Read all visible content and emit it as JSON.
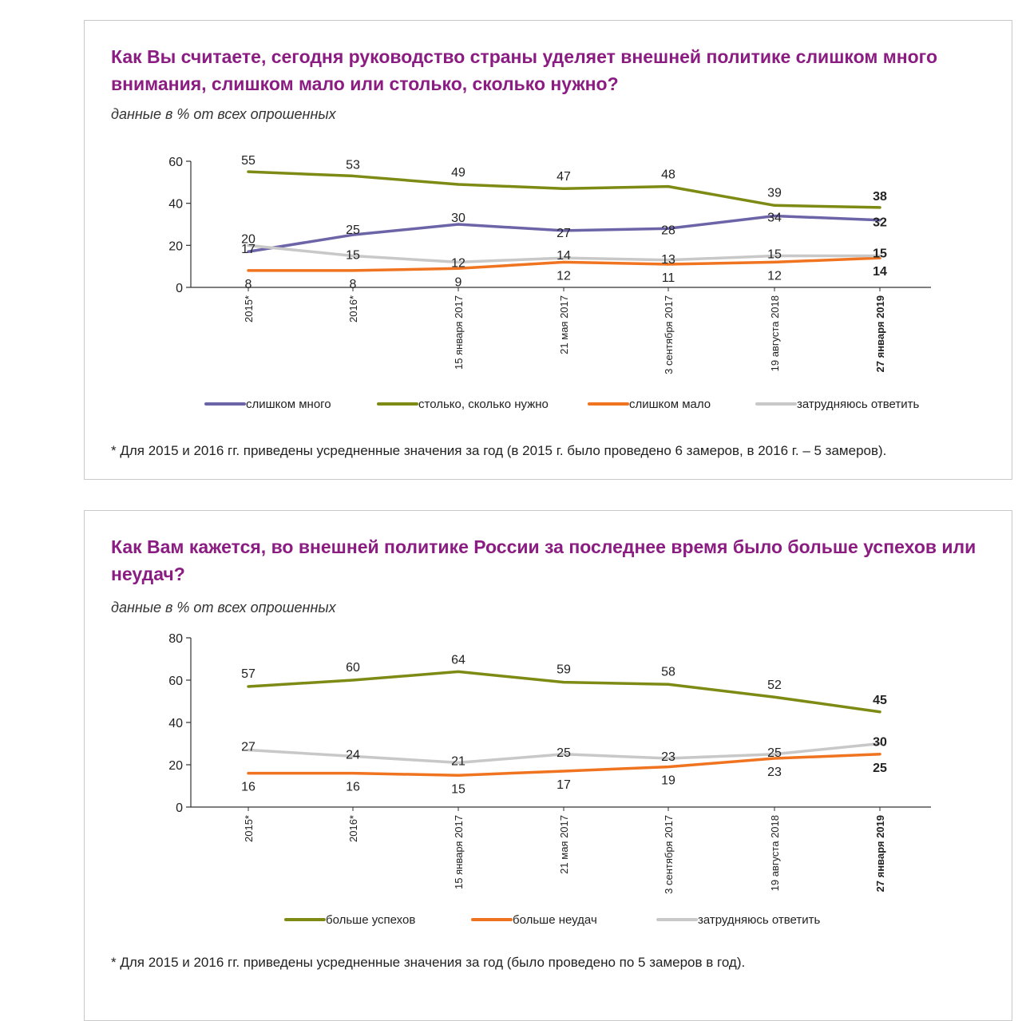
{
  "chart_data": [
    {
      "type": "line",
      "title": "Как Вы считаете, сегодня руководство страны уделяет внешней политике слишком много внимания, слишком мало или столько, сколько нужно?",
      "subtitle": "данные в % от всех опрошенных",
      "footnote": "*  Для 2015 и 2016 гг. приведены усредненные значения за год (в 2015 г. было проведено 6 замеров, в 2016 г. – 5 замеров).",
      "categories": [
        "2015*",
        "2016*",
        "15 января 2017",
        "21 мая 2017",
        "3 сентября 2017",
        "19 августа 2018",
        "27 января 2019"
      ],
      "ylim": [
        0,
        60
      ],
      "yticks": [
        "0",
        "20",
        "40",
        "60"
      ],
      "xlabel": "",
      "ylabel": "",
      "series": [
        {
          "name": "слишком много",
          "color": "#6b65a8",
          "values": [
            17,
            25,
            30,
            27,
            28,
            34,
            32
          ],
          "labels": [
            "17",
            "25",
            "30",
            "27",
            "28",
            "34",
            "32"
          ]
        },
        {
          "name": "столько, сколько нужно",
          "color": "#7d8a14",
          "values": [
            55,
            53,
            49,
            47,
            48,
            39,
            38
          ],
          "labels": [
            "55",
            "53",
            "49",
            "47",
            "48",
            "39",
            "38"
          ]
        },
        {
          "name": "слишком мало",
          "color": "#f07320",
          "values": [
            8,
            8,
            9,
            12,
            11,
            12,
            14
          ],
          "labels": [
            "8",
            "8",
            "9",
            "12",
            "11",
            "12",
            "14"
          ]
        },
        {
          "name": "затрудняюсь ответить",
          "color": "#c8c8c8",
          "values": [
            20,
            15,
            12,
            14,
            13,
            15,
            15
          ],
          "labels": [
            "20",
            "15",
            "12",
            "14",
            "13",
            "15",
            "15"
          ]
        }
      ]
    },
    {
      "type": "line",
      "title": "Как Вам кажется, во внешней политике России за последнее время было больше успехов или неудач?",
      "subtitle": "данные в % от всех опрошенных",
      "footnote": "*  Для 2015 и 2016 гг. приведены усредненные значения за год (было проведено по 5 замеров в год).",
      "categories": [
        "2015*",
        "2016*",
        "15 января 2017",
        "21 мая 2017",
        "3 сентября 2017",
        "19 августа 2018",
        "27 января 2019"
      ],
      "ylim": [
        0,
        80
      ],
      "yticks": [
        "0",
        "20",
        "40",
        "60",
        "80"
      ],
      "xlabel": "",
      "ylabel": "",
      "series": [
        {
          "name": "больше успехов",
          "color": "#7d8a14",
          "values": [
            57,
            60,
            64,
            59,
            58,
            52,
            45
          ],
          "labels": [
            "57",
            "60",
            "64",
            "59",
            "58",
            "52",
            "45"
          ]
        },
        {
          "name": "больше неудач",
          "color": "#f07320",
          "values": [
            16,
            16,
            15,
            17,
            19,
            23,
            25
          ],
          "labels": [
            "16",
            "16",
            "15",
            "17",
            "19",
            "23",
            "25"
          ]
        },
        {
          "name": "затрудняюсь ответить",
          "color": "#c8c8c8",
          "values": [
            27,
            24,
            21,
            25,
            23,
            25,
            30
          ],
          "labels": [
            "27",
            "24",
            "21",
            "25",
            "23",
            "25",
            "30"
          ]
        }
      ]
    }
  ]
}
